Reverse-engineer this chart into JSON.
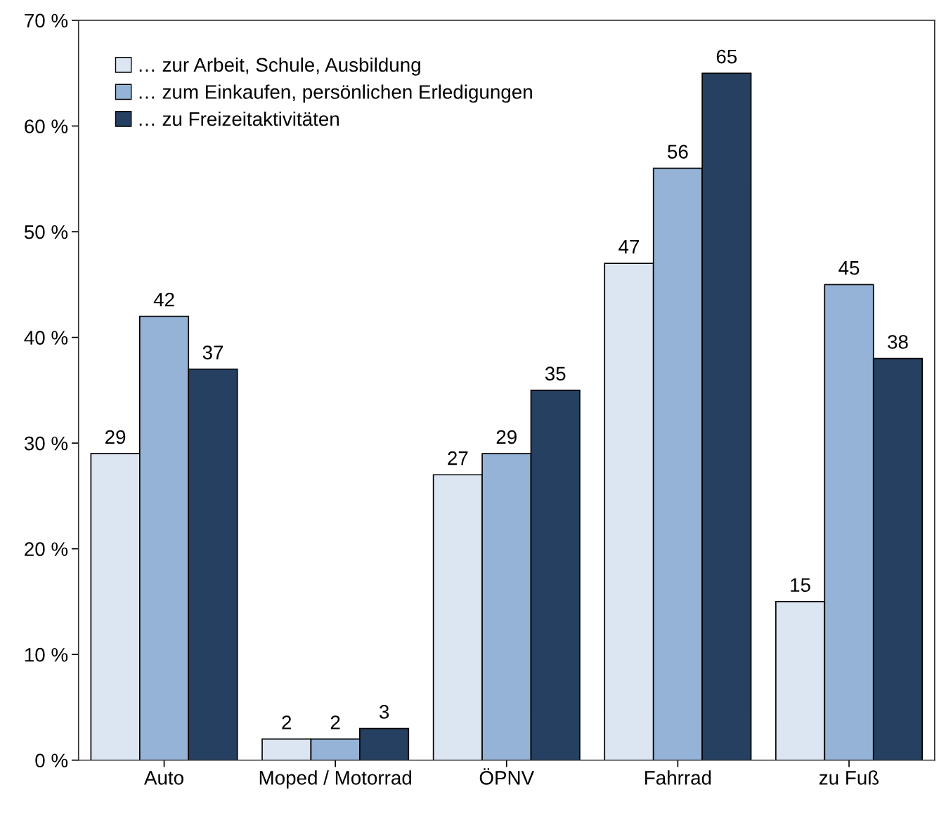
{
  "chart_data": {
    "type": "bar",
    "categories": [
      "Auto",
      "Moped / Motorrad",
      "ÖPNV",
      "Fahrrad",
      "zu Fuß"
    ],
    "series": [
      {
        "name": "… zur Arbeit, Schule, Ausbildung",
        "color": "#dce6f2",
        "values": [
          29,
          2,
          27,
          47,
          15
        ]
      },
      {
        "name": "… zum Einkaufen, persönlichen Erledigungen",
        "color": "#95b3d7",
        "values": [
          42,
          2,
          29,
          56,
          45
        ]
      },
      {
        "name": "… zu Freizeitaktivitäten",
        "color": "#254061",
        "values": [
          37,
          3,
          35,
          65,
          38
        ]
      }
    ],
    "ylim": [
      0,
      70
    ],
    "yticks": [
      {
        "value": 0,
        "label": "0 %"
      },
      {
        "value": 10,
        "label": "10 %"
      },
      {
        "value": 20,
        "label": "20 %"
      },
      {
        "value": 30,
        "label": "30 %"
      },
      {
        "value": 40,
        "label": "40 %"
      },
      {
        "value": 50,
        "label": "50 %"
      },
      {
        "value": 60,
        "label": "60 %"
      },
      {
        "value": 70,
        "label": "70 %"
      }
    ],
    "data_labels": true,
    "legend": "top left",
    "grid": false
  }
}
